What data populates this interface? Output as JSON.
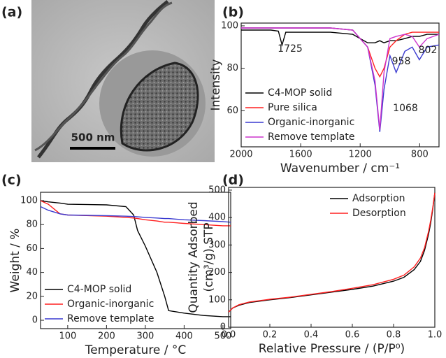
{
  "chart_data": [
    {
      "type": "image",
      "label": "(a)",
      "scale_bar": "500 nm"
    },
    {
      "type": "line",
      "label": "(b)",
      "xlabel": "Wavenumber / cm⁻¹",
      "ylabel": "Intensity",
      "xlim": [
        2000,
        670
      ],
      "ylim": [
        43,
        101.3
      ],
      "xticks": [
        2000,
        1600,
        1200,
        800
      ],
      "yticks": [
        60,
        80,
        100
      ],
      "legend": "lower left",
      "annotations": [
        "1725",
        "958",
        "802",
        "1068"
      ],
      "x": [
        2000,
        1800,
        1750,
        1725,
        1700,
        1600,
        1400,
        1250,
        1150,
        1100,
        1068,
        1040,
        1000,
        958,
        900,
        850,
        802,
        750,
        670
      ],
      "series": [
        {
          "name": "C4-MOP solid",
          "color": "#000000",
          "values": [
            98,
            98,
            97.5,
            91,
            97,
            97,
            97,
            96,
            92,
            92,
            93,
            92,
            93,
            93,
            94,
            95,
            95,
            96,
            96
          ]
        },
        {
          "name": "Pure silica",
          "color": "#ff2020",
          "values": [
            99,
            99,
            99,
            99,
            99,
            99,
            99,
            98,
            90,
            80,
            76,
            80,
            90,
            93,
            96,
            97,
            97,
            97,
            97
          ]
        },
        {
          "name": "Organic-inorganic",
          "color": "#3a3ad0",
          "values": [
            99,
            99,
            99,
            99,
            99,
            99,
            99,
            98,
            90,
            72,
            50,
            70,
            86,
            78,
            88,
            90,
            84,
            90,
            91
          ]
        },
        {
          "name": "Remove template",
          "color": "#cc33cc",
          "values": [
            99,
            99,
            99,
            99,
            99,
            99,
            99,
            98,
            90,
            74,
            51,
            78,
            94,
            95,
            96,
            95,
            90,
            94,
            96
          ]
        }
      ]
    },
    {
      "type": "line",
      "label": "(c)",
      "xlabel": "Temperature / °C",
      "ylabel": "Weight / %",
      "xlim": [
        30,
        520
      ],
      "ylim": [
        -7,
        107
      ],
      "xticks": [
        100,
        200,
        300,
        400,
        500
      ],
      "yticks": [
        0,
        20,
        40,
        60,
        80,
        100
      ],
      "legend": "lower left",
      "x": [
        30,
        50,
        80,
        100,
        200,
        250,
        270,
        280,
        300,
        330,
        350,
        360,
        400,
        450,
        500,
        520
      ],
      "series": [
        {
          "name": "C4-MOP solid",
          "color": "#000000",
          "values": [
            100,
            99,
            98,
            97,
            96.5,
            95,
            88,
            75,
            62,
            40,
            20,
            8,
            6,
            4,
            3,
            3
          ]
        },
        {
          "name": "Organic-inorganic",
          "color": "#ff2020",
          "values": [
            100,
            97,
            89,
            88,
            87,
            86,
            85.5,
            85,
            84,
            83,
            82,
            82,
            81,
            80,
            79,
            79
          ]
        },
        {
          "name": "Remove template",
          "color": "#3a3ad0",
          "values": [
            95,
            92,
            89,
            88,
            87.5,
            87,
            86.7,
            86.5,
            86,
            85.5,
            85,
            85,
            84,
            83.3,
            82.5,
            82
          ]
        }
      ]
    },
    {
      "type": "line",
      "label": "(d)",
      "xlabel": "Relative Pressure / (P/P⁰)",
      "ylabel": [
        "Quantity Adsorbed",
        "(cm³/g) STP"
      ],
      "xlim": [
        0,
        1.0
      ],
      "ylim": [
        0,
        510
      ],
      "xticks": [
        {
          "value": 0,
          "label": "0.0"
        },
        0.2,
        0.4,
        0.6,
        0.8,
        {
          "value": 1,
          "label": "1.0"
        }
      ],
      "yticks": [
        0,
        100,
        200,
        300,
        400,
        500
      ],
      "legend": "upper right",
      "x": [
        0,
        0.02,
        0.05,
        0.1,
        0.2,
        0.3,
        0.4,
        0.5,
        0.6,
        0.7,
        0.8,
        0.85,
        0.9,
        0.93,
        0.95,
        0.97,
        0.98,
        0.99,
        1.0
      ],
      "series": [
        {
          "name": "Adsorption",
          "color": "#000000",
          "values": [
            55,
            70,
            80,
            90,
            100,
            108,
            118,
            128,
            138,
            150,
            168,
            182,
            210,
            240,
            280,
            340,
            380,
            430,
            490
          ]
        },
        {
          "name": "Desorption",
          "color": "#ff2020",
          "values": [
            55,
            70,
            82,
            92,
            102,
            110,
            120,
            130,
            142,
            155,
            175,
            190,
            220,
            252,
            290,
            350,
            390,
            435,
            490
          ]
        }
      ]
    }
  ]
}
